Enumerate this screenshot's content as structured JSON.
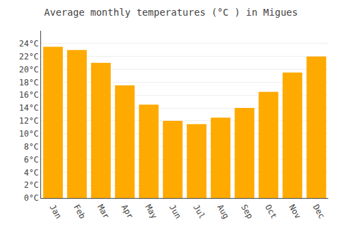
{
  "chart_data": {
    "type": "bar",
    "title": "Average monthly temperatures (°C ) in Migues",
    "categories": [
      "Jan",
      "Feb",
      "Mar",
      "Apr",
      "May",
      "Jun",
      "Jul",
      "Aug",
      "Sep",
      "Oct",
      "Nov",
      "Dec"
    ],
    "values": [
      23.5,
      23.0,
      21.0,
      17.5,
      14.5,
      12.0,
      11.5,
      12.5,
      14.0,
      16.5,
      19.5,
      22.0
    ],
    "color": "#FFAA00",
    "ylim": [
      0,
      26
    ],
    "yticks": [
      {
        "value": 0,
        "label": "0°C"
      },
      {
        "value": 2,
        "label": "2°C"
      },
      {
        "value": 4,
        "label": "4°C"
      },
      {
        "value": 6,
        "label": "6°C"
      },
      {
        "value": 8,
        "label": "8°C"
      },
      {
        "value": 10,
        "label": "10°C"
      },
      {
        "value": 12,
        "label": "12°C"
      },
      {
        "value": 14,
        "label": "14°C"
      },
      {
        "value": 16,
        "label": "16°C"
      },
      {
        "value": 18,
        "label": "18°C"
      },
      {
        "value": 20,
        "label": "20°C"
      },
      {
        "value": 22,
        "label": "22°C"
      },
      {
        "value": 24,
        "label": "24°C"
      }
    ],
    "grid": true
  }
}
